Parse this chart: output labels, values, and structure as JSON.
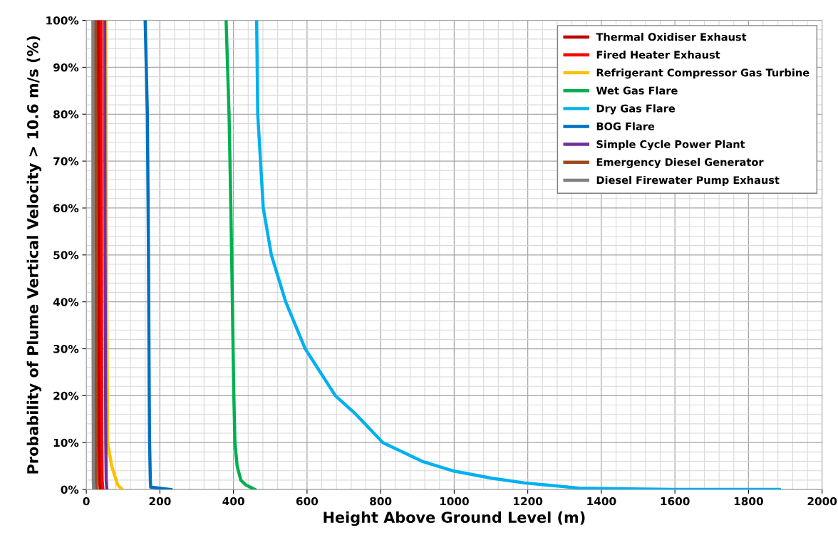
{
  "chart_data": {
    "type": "line",
    "xlabel": "Height Above Ground Level (m)",
    "ylabel": "Probability of Plume Vertical Velocity > 10.6 m/s (%)",
    "xlim": [
      0,
      2000
    ],
    "xticks": [
      0,
      200,
      400,
      600,
      800,
      1000,
      1200,
      1400,
      1600,
      1800,
      2000
    ],
    "ylim": [
      0,
      100
    ],
    "yticks": [
      {
        "value": 0,
        "label": "0%"
      },
      {
        "value": 10,
        "label": "10%"
      },
      {
        "value": 20,
        "label": "20%"
      },
      {
        "value": 30,
        "label": "30%"
      },
      {
        "value": 40,
        "label": "40%"
      },
      {
        "value": 50,
        "label": "50%"
      },
      {
        "value": 60,
        "label": "60%"
      },
      {
        "value": 70,
        "label": "70%"
      },
      {
        "value": 80,
        "label": "80%"
      },
      {
        "value": 90,
        "label": "90%"
      },
      {
        "value": 100,
        "label": "100%"
      }
    ],
    "grid": true,
    "legend": "top right",
    "marker": "none",
    "line_style": "solid",
    "series": [
      {
        "name": "Thermal Oxidiser Exhaust",
        "color": "#c00000",
        "x": [
          33,
          34,
          35,
          36,
          38
        ],
        "values": [
          100,
          50,
          10,
          2,
          0
        ]
      },
      {
        "name": "Fired Heater Exhaust",
        "color": "#ff0000",
        "x": [
          40,
          41,
          42,
          43,
          45
        ],
        "values": [
          100,
          50,
          10,
          2,
          0
        ]
      },
      {
        "name": "Refrigerant Compressor Gas Turbine",
        "color": "#ffc000",
        "x": [
          53,
          55,
          58,
          69,
          85,
          98
        ],
        "values": [
          100,
          50,
          10,
          5,
          1,
          0
        ]
      },
      {
        "name": "Wet Gas Flare",
        "color": "#00b050",
        "x": [
          380,
          388,
          393,
          397,
          401,
          404,
          410,
          420,
          433,
          458
        ],
        "values": [
          100,
          80,
          60,
          40,
          20,
          10,
          5,
          2,
          1,
          0
        ]
      },
      {
        "name": "Dry Gas Flare",
        "color": "#00b0f0",
        "x": [
          463,
          466,
          481,
          503,
          542,
          595,
          677,
          733,
          806,
          913,
          995,
          1102,
          1192,
          1340,
          1592,
          1884
        ],
        "values": [
          100,
          80,
          60,
          50,
          40,
          30,
          20,
          16,
          10,
          6,
          4,
          2.4,
          1.4,
          0.3,
          0,
          0
        ]
      },
      {
        "name": "BOG Flare",
        "color": "#0070c0",
        "x": [
          160,
          166,
          169,
          171,
          172,
          174,
          175,
          230
        ],
        "values": [
          100,
          80,
          50,
          20,
          10,
          2,
          0.5,
          0
        ]
      },
      {
        "name": "Simple Cycle Power Plant",
        "color": "#7030a0",
        "x": [
          50,
          51,
          53,
          54,
          56
        ],
        "values": [
          100,
          50,
          10,
          2,
          0
        ]
      },
      {
        "name": "Emergency Diesel Generator",
        "color": "#9c4a1a",
        "x": [
          25,
          26,
          27,
          27,
          28
        ],
        "values": [
          100,
          50,
          10,
          2,
          0
        ]
      },
      {
        "name": "Diesel Firewater Pump Exhaust",
        "color": "#808080",
        "x": [
          18,
          18,
          19,
          19,
          20
        ],
        "values": [
          100,
          50,
          10,
          2,
          0
        ]
      }
    ]
  }
}
